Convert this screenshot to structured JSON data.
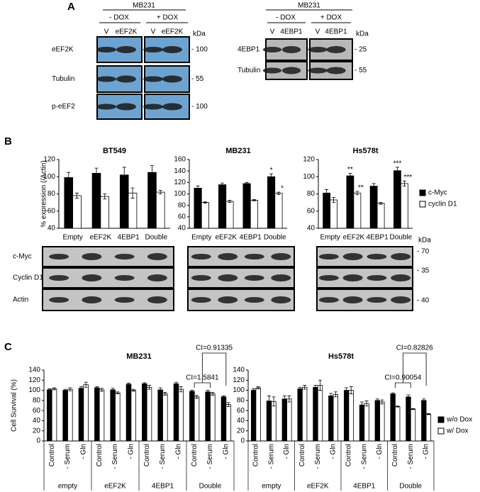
{
  "panel_labels": [
    "A",
    "B",
    "C"
  ],
  "blots_a": [
    {
      "title": "MB231",
      "conditions": [
        "- DOX",
        "+ DOX"
      ],
      "lanes": [
        "V",
        "eEF2K",
        "V",
        "eEF2K"
      ],
      "unit": "kDa",
      "rows": [
        {
          "label": "eEF2K",
          "marker": "- 100"
        },
        {
          "label": "Tubulin",
          "marker": "- 55"
        },
        {
          "label": "p-eEF2",
          "marker": "- 100"
        }
      ]
    },
    {
      "title": "MB231",
      "conditions": [
        "- DOX",
        "+ DOX"
      ],
      "lanes": [
        "V",
        "4EBP1",
        "V",
        "4EBP1"
      ],
      "unit": "kDa",
      "rows": [
        {
          "label": "4EBP1",
          "marker": "- 25"
        },
        {
          "label": "Tubulin",
          "marker": "- 55"
        }
      ]
    }
  ],
  "blots_b": {
    "unit": "kDa",
    "rows": [
      {
        "label": "c-Myc",
        "marker": "- 70"
      },
      {
        "label": "Cyclin D1",
        "marker": "- 35"
      },
      {
        "label": "Actin",
        "marker": "- 40"
      }
    ]
  },
  "chart_data": [
    {
      "type": "bar",
      "title": "BT549",
      "y_label": "% expression (/Actin)",
      "categories": [
        "Empty",
        "eEF2K",
        "4EBP1",
        "Double"
      ],
      "ylim": [
        40,
        120
      ],
      "yticks": [
        40,
        60,
        80,
        100,
        120
      ],
      "series": [
        {
          "color": "#000000",
          "values": [
            99,
            104,
            102,
            105
          ],
          "errors": [
            6,
            6,
            9,
            8
          ]
        },
        {
          "color": "#ffffff",
          "values": [
            78,
            77,
            81,
            82
          ],
          "errors": [
            3,
            3,
            6,
            2
          ]
        }
      ]
    },
    {
      "type": "bar",
      "title": "MB231",
      "categories": [
        "Empty",
        "eEF2K",
        "4EBP1",
        "Double"
      ],
      "ylim": [
        40,
        160
      ],
      "yticks": [
        40,
        60,
        80,
        100,
        120,
        140,
        160
      ],
      "series": [
        {
          "color": "#000000",
          "values": [
            110,
            116,
            118,
            130
          ],
          "errors": [
            4,
            3,
            2,
            5
          ],
          "significance": [
            null,
            null,
            null,
            "*"
          ]
        },
        {
          "color": "#ffffff",
          "values": [
            85,
            87,
            89,
            101
          ],
          "errors": [
            1,
            2,
            1,
            2
          ],
          "significance": [
            null,
            null,
            null,
            "*"
          ]
        }
      ]
    },
    {
      "type": "bar",
      "title": "Hs578t",
      "categories": [
        "Empty",
        "eEF2K",
        "4EBP1",
        "Double"
      ],
      "ylim": [
        40,
        120
      ],
      "yticks": [
        40,
        60,
        80,
        100,
        120
      ],
      "legend": "right",
      "series": [
        {
          "name": "c-Myc",
          "color": "#000000",
          "values": [
            81,
            101,
            89,
            107
          ],
          "errors": [
            4,
            3,
            3,
            4
          ],
          "significance": [
            null,
            "**",
            null,
            "***"
          ]
        },
        {
          "name": "cyclin D1",
          "color": "#ffffff",
          "values": [
            73,
            81,
            69,
            92
          ],
          "errors": [
            3,
            2,
            1,
            3
          ],
          "significance": [
            null,
            "**",
            null,
            "***"
          ]
        }
      ]
    },
    {
      "type": "bar",
      "title": "MB231",
      "y_label": "Cell Survival (%)",
      "categories": [
        "Control",
        "- Serum",
        "- Gln",
        "Control",
        "- Serum",
        "- Gln",
        "Control",
        "- Serum",
        "- Gln",
        "Control",
        "- Serum",
        "- Gln"
      ],
      "groups": [
        "empty",
        "eEF2K",
        "4EBP1",
        "Double"
      ],
      "ylim": [
        0,
        140
      ],
      "yticks": [
        0,
        20,
        40,
        60,
        80,
        100,
        120,
        140
      ],
      "series": [
        {
          "color": "#000000",
          "values": [
            101,
            100,
            104,
            105,
            101,
            112,
            113,
            101,
            113,
            98,
            97,
            87
          ],
          "errors": [
            2,
            2,
            3,
            2,
            3,
            2,
            2,
            4,
            3,
            2,
            3,
            2
          ]
        },
        {
          "color": "#ffffff",
          "values": [
            103,
            102,
            111,
            101,
            95,
            100,
            106,
            93,
            102,
            87,
            93,
            72
          ],
          "errors": [
            2,
            3,
            5,
            3,
            2,
            2,
            4,
            3,
            5,
            3,
            3,
            4
          ]
        }
      ],
      "annotations": [
        {
          "text": "CI=1.5841",
          "color": "#000000"
        },
        {
          "text": "CI=0.91335",
          "color": "#1a9e3a"
        }
      ]
    },
    {
      "type": "bar",
      "title": "Hs578t",
      "categories": [
        "Control",
        "- Serum",
        "- Gln",
        "Control",
        "- Serum",
        "- Gln",
        "Control",
        "- Serum",
        "- Gln",
        "Control",
        "- Serum",
        "- Gln"
      ],
      "groups": [
        "empty",
        "eEF2K",
        "4EBP1",
        "Double"
      ],
      "ylim": [
        0,
        140
      ],
      "yticks": [
        0,
        20,
        40,
        60,
        80,
        100,
        120,
        140
      ],
      "legend": "right",
      "series": [
        {
          "name": "w/o Dox",
          "color": "#000000",
          "values": [
            100,
            79,
            83,
            103,
            106,
            89,
            100,
            71,
            80,
            93,
            87,
            80
          ],
          "errors": [
            3,
            10,
            6,
            3,
            4,
            5,
            5,
            6,
            3,
            2,
            4,
            3
          ]
        },
        {
          "name": "w/ Dox",
          "color": "#ffffff",
          "values": [
            105,
            78,
            83,
            106,
            110,
            92,
            100,
            74,
            77,
            68,
            63,
            53
          ],
          "errors": [
            2,
            9,
            6,
            4,
            10,
            5,
            7,
            5,
            4,
            1,
            1,
            1
          ]
        }
      ],
      "annotations": [
        {
          "text": "CI=0.90054",
          "color": "#1a9e3a"
        },
        {
          "text": "CI=0.82826",
          "color": "#e0201b"
        }
      ]
    }
  ]
}
